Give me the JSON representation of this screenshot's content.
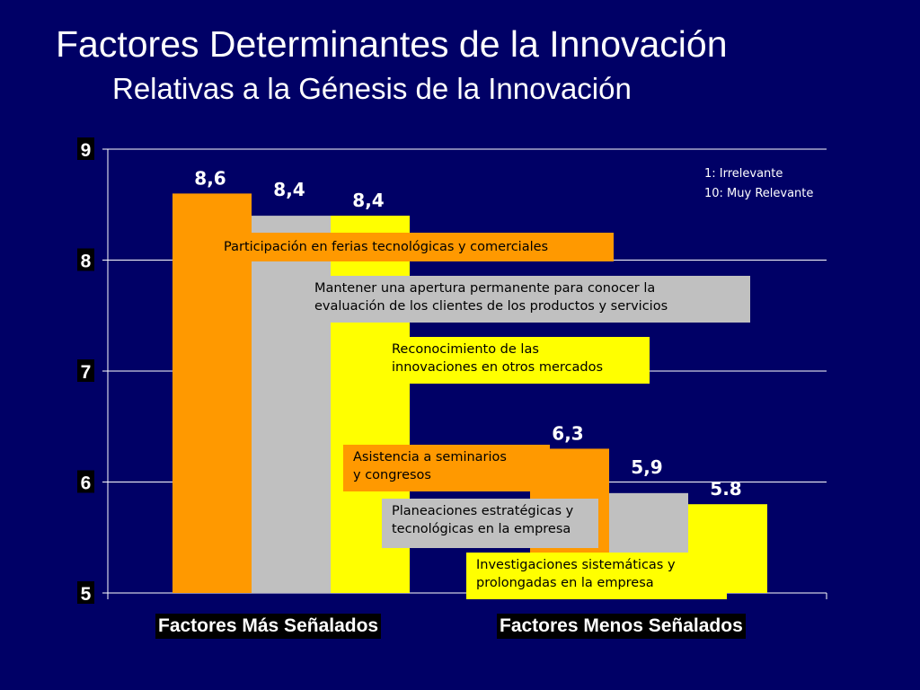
{
  "title": "Factores Determinantes de la Innovación",
  "subtitle": "Relativas a la Génesis de la Innovación",
  "notes": [
    "1: Irrelevante",
    "10: Muy Relevante"
  ],
  "colors": {
    "background": "#000066",
    "orange": "#ff9900",
    "gray": "#c0c0c0",
    "yellow": "#ffff00"
  },
  "chart_data": {
    "type": "bar",
    "ylim": [
      5,
      9
    ],
    "yticks": [
      "5",
      "6",
      "7",
      "8",
      "9"
    ],
    "grid": true,
    "categories": [
      "Factores Más Señalados",
      "Factores Menos Señalados"
    ],
    "bars": [
      {
        "group": 0,
        "value": 8.6,
        "label": "8,6",
        "color": "#ff9900"
      },
      {
        "group": 0,
        "value": 8.4,
        "label": "8,4",
        "color": "#c0c0c0"
      },
      {
        "group": 0,
        "value": 8.4,
        "label": "8,4",
        "color": "#ffff00"
      },
      {
        "group": 1,
        "value": 6.3,
        "label": "6,3",
        "color": "#ff9900"
      },
      {
        "group": 1,
        "value": 5.9,
        "label": "5,9",
        "color": "#c0c0c0"
      },
      {
        "group": 1,
        "value": 5.8,
        "label": "5.8",
        "color": "#ffff00"
      }
    ]
  },
  "callouts": {
    "c1": "Participación en ferias tecnológicas y comerciales",
    "c2a": "Mantener una apertura permanente para conocer la",
    "c2b": "evaluación de los clientes de los productos y servicios",
    "c3a": "Reconocimiento de las",
    "c3b": "innovaciones en otros mercados",
    "c4a": "Asistencia a seminarios",
    "c4b": "y congresos",
    "c5a": "Planeaciones estratégicas y",
    "c5b": "tecnológicas en la empresa",
    "c6a": "Investigaciones sistemáticas y",
    "c6b": "prolongadas en la empresa"
  }
}
